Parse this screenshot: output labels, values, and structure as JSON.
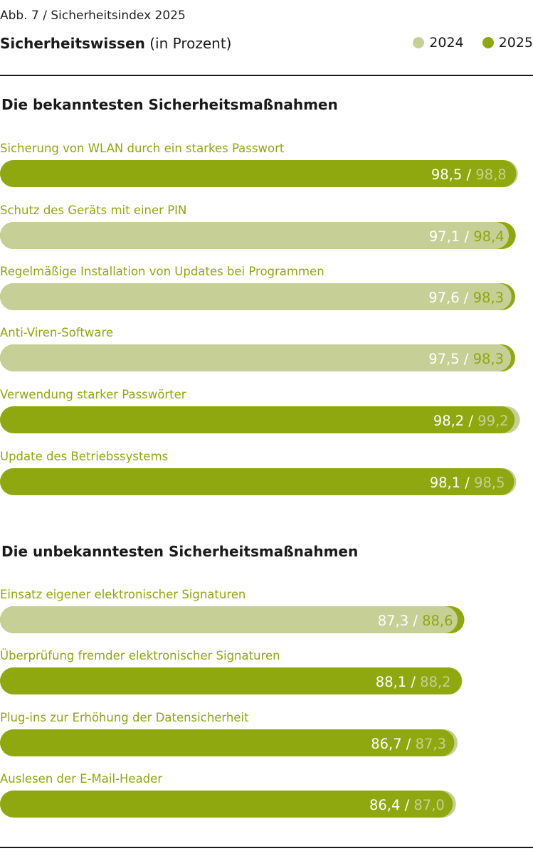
{
  "figure_label": "Abb. 7 / Sicherheitsindex 2025",
  "colors": {
    "y2024": "#c6d096",
    "y2025": "#8fa80f",
    "label": "#8fa810",
    "text_on_2025": "#ffffff"
  },
  "chart_data": {
    "type": "bar",
    "orientation": "horizontal",
    "title": "Sicherheitswissen",
    "subtitle": "(in Prozent)",
    "legend": [
      "2024",
      "2025"
    ],
    "xlim": [
      0,
      100
    ],
    "sections": [
      {
        "title": "Die bekanntesten Sicherheitsmaßnahmen",
        "rows": [
          {
            "label": "Sicherung von WLAN durch ein starkes Passwort",
            "v2025": 98.5,
            "v2024": 98.8,
            "t2025": "98,5",
            "t2024": "98,8",
            "sep": "/"
          },
          {
            "label": "Schutz des Geräts mit einer PIN",
            "v2025": 98.4,
            "v2024": 97.1,
            "t2025": "98,4",
            "t2024": "97,1",
            "sep": "/"
          },
          {
            "label": "Regelmäßige Installation von Updates bei Programmen",
            "v2025": 98.3,
            "v2024": 97.6,
            "t2025": "98,3",
            "t2024": "97,6",
            "sep": "/"
          },
          {
            "label": "Anti-Viren-Software",
            "v2025": 98.3,
            "v2024": 97.5,
            "t2025": "98,3",
            "t2024": "97,5",
            "sep": "/"
          },
          {
            "label": "Verwendung starker Passwörter",
            "v2025": 98.2,
            "v2024": 99.2,
            "t2025": "98,2",
            "t2024": "99,2",
            "sep": "/"
          },
          {
            "label": "Update des Betriebssystems",
            "v2025": 98.1,
            "v2024": 98.5,
            "t2025": "98,1",
            "t2024": "98,5",
            "sep": "/"
          }
        ]
      },
      {
        "title": "Die unbekanntesten Sicherheitsmaßnahmen",
        "rows": [
          {
            "label": "Einsatz eigener elektronischer Signaturen",
            "v2025": 88.6,
            "v2024": 87.3,
            "t2025": "88,6",
            "t2024": "87,3",
            "sep": "/"
          },
          {
            "label": "Überprüfung fremder elektronischer Signaturen",
            "v2025": 88.1,
            "v2024": 88.2,
            "t2025": "88,1",
            "t2024": "88,2",
            "sep": "/"
          },
          {
            "label": "Plug-ins zur Erhöhung der Datensicherheit",
            "v2025": 86.7,
            "v2024": 87.3,
            "t2025": "86,7",
            "t2024": "87,3",
            "sep": "/"
          },
          {
            "label": "Auslesen der E-Mail-Header",
            "v2025": 86.4,
            "v2024": 87.0,
            "t2025": "86,4",
            "t2024": "87,0",
            "sep": "/"
          }
        ]
      }
    ]
  }
}
